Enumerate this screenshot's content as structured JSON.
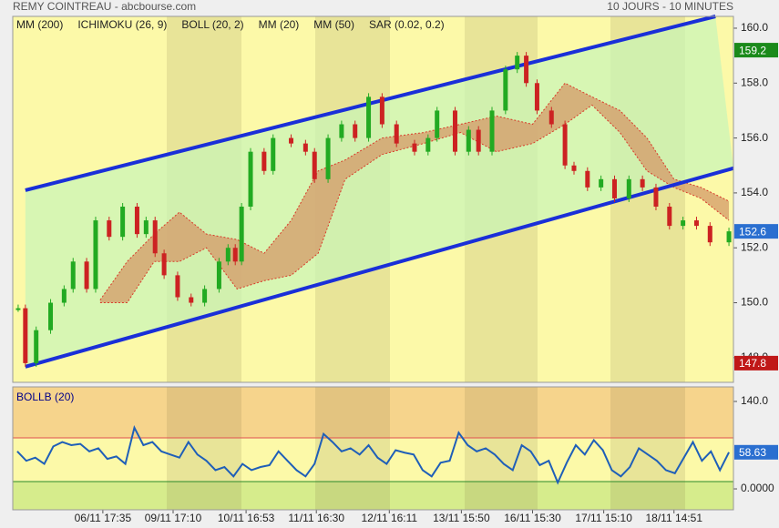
{
  "chart_data": [
    {
      "type": "candlestick",
      "title": "REMY COINTREAU - abcbourse.com",
      "subtitle": "10 JOURS - 10 MINUTES",
      "indicators": [
        {
          "name": "MM (200)",
          "color": "#0000a0"
        },
        {
          "name": "ICHIMOKU (26, 9)",
          "color": "#0000a0"
        },
        {
          "name": "BOLL (20, 2)",
          "color": "#e06040"
        },
        {
          "name": "MM (20)",
          "color": "#008000"
        },
        {
          "name": "MM (50)",
          "color": "#e00000"
        },
        {
          "name": "SAR (0.02, 0.2)",
          "color": "#c00000"
        }
      ],
      "xlim": [
        0,
        80
      ],
      "xticks": [
        {
          "value": 10,
          "label": "06/11 17:35"
        },
        {
          "value": 17.8,
          "label": "09/11 17:10"
        },
        {
          "value": 25.9,
          "label": "10/11 16:53"
        },
        {
          "value": 33.7,
          "label": "11/11 16:30"
        },
        {
          "value": 41.8,
          "label": "12/11 16:11"
        },
        {
          "value": 49.8,
          "label": "13/11 15:50"
        },
        {
          "value": 57.7,
          "label": "16/11 15:30"
        },
        {
          "value": 65.6,
          "label": "17/11 15:10"
        },
        {
          "value": 73.4,
          "label": "18/11 14:51"
        }
      ],
      "ylim": [
        147.1,
        160.43
      ],
      "yticks": [
        {
          "value": 148,
          "label": "148.0"
        },
        {
          "value": 150,
          "label": "150.0"
        },
        {
          "value": 152,
          "label": "152.0"
        },
        {
          "value": 154,
          "label": "154.0"
        },
        {
          "value": 156,
          "label": "156.0"
        },
        {
          "value": 158,
          "label": "158.0"
        },
        {
          "value": 160,
          "label": "160.0"
        }
      ],
      "series": [
        {
          "up_color": "#22aa22",
          "down_color": "#cc2222",
          "x": [
            0.6,
            1.4,
            2.6,
            4.2,
            5.7,
            6.7,
            8.2,
            9.2,
            10.7,
            12.2,
            13.8,
            14.8,
            15.8,
            16.8,
            18.3,
            19.8,
            21.3,
            22.9,
            23.9,
            24.7,
            25.4,
            26.4,
            27.9,
            28.9,
            30.9,
            32.5,
            33.5,
            35,
            36.5,
            38,
            39.5,
            41,
            42.6,
            44.6,
            46.1,
            47.1,
            49.1,
            50.6,
            51.7,
            53.2,
            54.7,
            56,
            57,
            58.2,
            59.8,
            61.3,
            62.3,
            63.8,
            65.3,
            66.8,
            68.4,
            69.9,
            71.4,
            72.9,
            74.4,
            75.9,
            77.4,
            79.5
          ],
          "values": [
            149.8,
            147.8,
            149,
            150,
            150.5,
            151.5,
            150.5,
            153,
            152.4,
            153.5,
            152.5,
            153,
            151.8,
            151,
            150.2,
            150,
            150.5,
            151.5,
            152,
            151.5,
            153.5,
            155.5,
            154.8,
            156,
            155.8,
            155.5,
            154.5,
            156,
            156.5,
            156,
            157.5,
            156.5,
            155.8,
            155.5,
            156,
            157,
            155.5,
            156.3,
            155.5,
            157,
            158.5,
            159,
            158,
            157,
            156.5,
            155,
            154.8,
            154.2,
            154.5,
            153.8,
            154.5,
            154.2,
            153.5,
            152.8,
            153,
            152.8,
            152.2,
            152.6
          ]
        }
      ],
      "cloud": {
        "color": "#d49a68",
        "x": [
          9.7,
          12.7,
          15.7,
          18.5,
          21.5,
          24.9,
          27.9,
          30.9,
          33.9,
          36.9,
          41,
          45.6,
          49.7,
          53.7,
          57.7,
          61.3,
          64.3,
          67.4,
          70.4,
          73.4,
          76.4,
          79.5
        ],
        "upper": [
          150.1,
          151.5,
          152.5,
          153.3,
          152.5,
          152.3,
          151.8,
          153,
          154.8,
          155.2,
          156,
          156.2,
          156.5,
          156.8,
          156.5,
          158,
          157.5,
          157,
          156,
          154.5,
          154.2,
          153.7
        ],
        "lower": [
          150,
          150,
          151.5,
          151.5,
          152,
          150.5,
          150.8,
          151,
          151.8,
          154.5,
          155.4,
          155.8,
          156.2,
          155.5,
          155.8,
          156.5,
          157.2,
          156.2,
          154.8,
          154.2,
          153.8,
          153
        ]
      },
      "channel": {
        "color": "#1a2fd8",
        "lines": [
          {
            "x": [
              1.4,
              78
            ],
            "y": [
              154.1,
              160.43
            ]
          },
          {
            "x": [
              1.4,
              80
            ],
            "y": [
              147.67,
              154.9
            ]
          }
        ]
      },
      "last_values": [
        {
          "value": 159.2,
          "color": "#1a8a1a"
        },
        {
          "value": 152.6,
          "color": "#2a6fd0"
        },
        {
          "value": 147.8,
          "color": "#c01818"
        }
      ]
    },
    {
      "type": "line",
      "title": "BOLLB (20)",
      "color": "#1f5fb8",
      "ylim": [
        -33.5,
        163.3
      ],
      "yticks": [
        {
          "value": 140,
          "label": "140.0"
        },
        {
          "value": 0,
          "label": "0.0000"
        }
      ],
      "values": [
        60,
        45,
        50,
        40,
        68,
        75,
        70,
        72,
        60,
        65,
        48,
        52,
        40,
        98,
        70,
        75,
        60,
        55,
        50,
        75,
        55,
        45,
        30,
        35,
        20,
        40,
        30,
        35,
        38,
        60,
        45,
        30,
        20,
        40,
        88,
        75,
        60,
        65,
        55,
        70,
        50,
        40,
        62,
        58,
        55,
        30,
        20,
        42,
        45,
        90,
        70,
        60,
        65,
        55,
        40,
        30,
        70,
        60,
        38,
        45,
        10,
        42,
        70,
        55,
        78,
        62,
        30,
        20,
        35,
        65,
        55,
        45,
        30,
        25,
        50,
        75,
        45,
        60,
        30,
        58.63
      ],
      "last_value": {
        "value": 58.63,
        "label": "58.63",
        "color": "#2a6fd0"
      }
    }
  ]
}
